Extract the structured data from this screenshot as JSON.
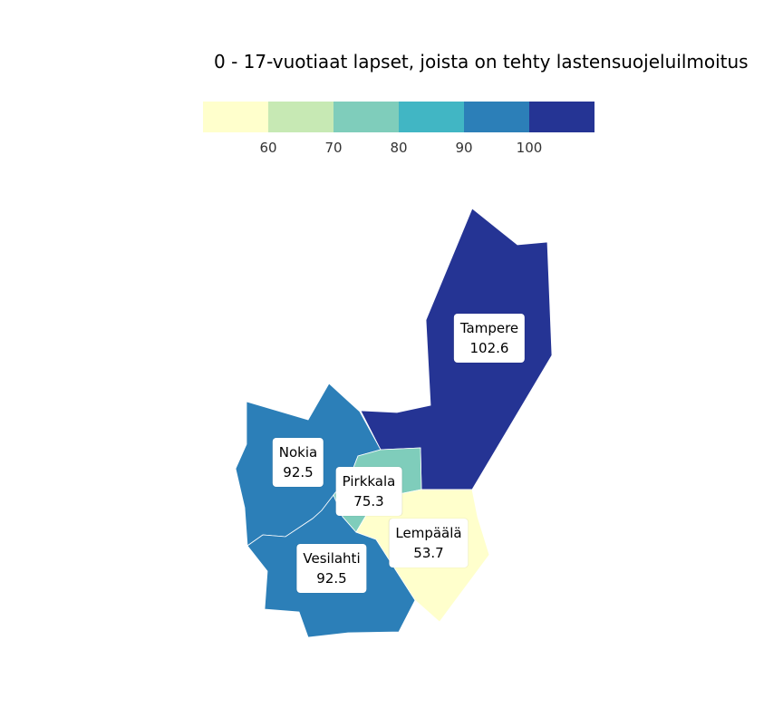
{
  "title": "0 - 17-vuotiaat lapset, joista on tehty lastensuojeluilmoitus",
  "legend": {
    "colors": [
      "#ffffcc",
      "#c7e9b4",
      "#7fcdbb",
      "#41b6c4",
      "#2c7fb8",
      "#253494"
    ],
    "ticks": [
      "60",
      "70",
      "80",
      "90",
      "100"
    ]
  },
  "regions": [
    {
      "name": "Tampere",
      "value": "102.6",
      "color": "#253494"
    },
    {
      "name": "Nokia",
      "value": "92.5",
      "color": "#2c7fb8"
    },
    {
      "name": "Vesilahti",
      "value": "92.5",
      "color": "#2c7fb8"
    },
    {
      "name": "Pirkkala",
      "value": "75.3",
      "color": "#7fcdbb"
    },
    {
      "name": "Lempäälä",
      "value": "53.7",
      "color": "#ffffcc"
    }
  ]
}
